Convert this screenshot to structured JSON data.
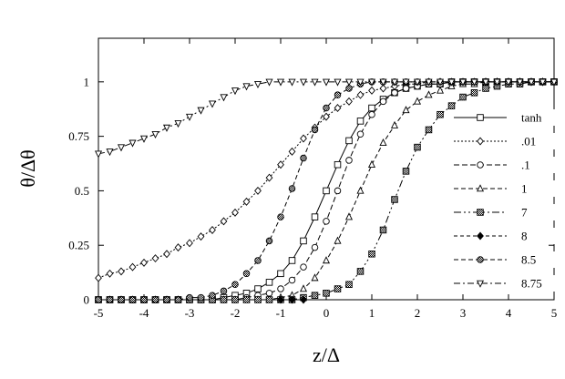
{
  "chart_data": {
    "type": "line",
    "title": "",
    "xlabel": "z/Δ",
    "ylabel": "θ/Δθ",
    "xlim": [
      -5,
      5
    ],
    "ylim": [
      0,
      1.2
    ],
    "xticks": [
      -5,
      -4,
      -3,
      -2,
      -1,
      0,
      1,
      2,
      3,
      4,
      5
    ],
    "xtick_labels": [
      "-5",
      "-4",
      "-3",
      "-2",
      "-1",
      "0",
      "1",
      "2",
      "3",
      "4",
      "5"
    ],
    "yticks": [
      0,
      0.25,
      0.5,
      0.75,
      1
    ],
    "ytick_labels": [
      "0",
      "0.25",
      "0.5",
      "0.75",
      "1"
    ],
    "grid": false,
    "legend_position": "right",
    "series": [
      {
        "name": "tanh",
        "marker": "square-open",
        "dash": "solid",
        "x": [
          -5,
          -4.75,
          -4.5,
          -4.25,
          -4,
          -3.75,
          -3.5,
          -3.25,
          -3,
          -2.75,
          -2.5,
          -2.25,
          -2,
          -1.75,
          -1.5,
          -1.25,
          -1,
          -0.75,
          -0.5,
          -0.25,
          0,
          0.25,
          0.5,
          0.75,
          1,
          1.25,
          1.5,
          1.75,
          2,
          2.25,
          2.5,
          2.75,
          3,
          3.25,
          3.5,
          3.75,
          4,
          4.25,
          4.5,
          4.75,
          5
        ],
        "y": [
          0,
          0,
          0,
          0,
          0,
          0,
          0,
          0,
          0,
          0,
          0,
          0.01,
          0.02,
          0.03,
          0.05,
          0.08,
          0.12,
          0.18,
          0.27,
          0.38,
          0.5,
          0.62,
          0.73,
          0.82,
          0.88,
          0.92,
          0.95,
          0.97,
          0.98,
          0.99,
          0.99,
          1,
          1,
          1,
          1,
          1,
          1,
          1,
          1,
          1,
          1
        ]
      },
      {
        "name": ".01",
        "marker": "diamond-open",
        "dash": "2,2",
        "x": [
          -5,
          -4.75,
          -4.5,
          -4.25,
          -4,
          -3.75,
          -3.5,
          -3.25,
          -3,
          -2.75,
          -2.5,
          -2.25,
          -2,
          -1.75,
          -1.5,
          -1.25,
          -1,
          -0.75,
          -0.5,
          -0.25,
          0,
          0.25,
          0.5,
          0.75,
          1,
          1.25,
          1.5,
          1.75,
          2,
          2.25,
          2.5,
          2.75,
          3,
          3.25,
          3.5,
          3.75,
          4,
          4.25,
          4.5,
          4.75,
          5
        ],
        "y": [
          0.1,
          0.12,
          0.13,
          0.15,
          0.17,
          0.19,
          0.21,
          0.24,
          0.26,
          0.29,
          0.32,
          0.36,
          0.4,
          0.45,
          0.5,
          0.56,
          0.62,
          0.68,
          0.74,
          0.79,
          0.84,
          0.88,
          0.91,
          0.94,
          0.96,
          0.97,
          0.98,
          0.99,
          0.99,
          1,
          1,
          1,
          1,
          1,
          1,
          1,
          1,
          1,
          1,
          1,
          1
        ]
      },
      {
        "name": ".1",
        "marker": "circle-open",
        "dash": "6,3",
        "x": [
          -5,
          -4.75,
          -4.5,
          -4.25,
          -4,
          -3.75,
          -3.5,
          -3.25,
          -3,
          -2.75,
          -2.5,
          -2.25,
          -2,
          -1.75,
          -1.5,
          -1.25,
          -1,
          -0.75,
          -0.5,
          -0.25,
          0,
          0.25,
          0.5,
          0.75,
          1,
          1.25,
          1.5,
          1.75,
          2,
          2.25,
          2.5,
          2.75,
          3,
          3.25,
          3.5,
          3.75,
          4,
          4.25,
          4.5,
          4.75,
          5
        ],
        "y": [
          0,
          0,
          0,
          0,
          0,
          0,
          0,
          0,
          0,
          0,
          0,
          0,
          0,
          0.01,
          0.02,
          0.03,
          0.05,
          0.09,
          0.15,
          0.24,
          0.36,
          0.5,
          0.64,
          0.76,
          0.85,
          0.91,
          0.95,
          0.97,
          0.98,
          0.99,
          0.99,
          1,
          1,
          1,
          1,
          1,
          1,
          1,
          1,
          1,
          1
        ]
      },
      {
        "name": "1",
        "marker": "triangle-open",
        "dash": "5,3",
        "x": [
          -5,
          -4.75,
          -4.5,
          -4.25,
          -4,
          -3.75,
          -3.5,
          -3.25,
          -3,
          -2.75,
          -2.5,
          -2.25,
          -2,
          -1.75,
          -1.5,
          -1.25,
          -1,
          -0.75,
          -0.5,
          -0.25,
          0,
          0.25,
          0.5,
          0.75,
          1,
          1.25,
          1.5,
          1.75,
          2,
          2.25,
          2.5,
          2.75,
          3,
          3.25,
          3.5,
          3.75,
          4,
          4.25,
          4.5,
          4.75,
          5
        ],
        "y": [
          0,
          0,
          0,
          0,
          0,
          0,
          0,
          0,
          0,
          0,
          0,
          0,
          0,
          0,
          0,
          0,
          0.01,
          0.02,
          0.05,
          0.1,
          0.18,
          0.27,
          0.38,
          0.5,
          0.62,
          0.72,
          0.8,
          0.87,
          0.91,
          0.94,
          0.96,
          0.98,
          0.99,
          0.99,
          1,
          1,
          1,
          1,
          1,
          1,
          1
        ]
      },
      {
        "name": "7",
        "marker": "square-hatched",
        "dash": "8,3,2,3,2,3",
        "x": [
          -5,
          -4.75,
          -4.5,
          -4.25,
          -4,
          -3.75,
          -3.5,
          -3.25,
          -3,
          -2.75,
          -2.5,
          -2.25,
          -2,
          -1.75,
          -1.5,
          -1.25,
          -1,
          -0.75,
          -0.5,
          -0.25,
          0,
          0.25,
          0.5,
          0.75,
          1,
          1.25,
          1.5,
          1.75,
          2,
          2.25,
          2.5,
          2.75,
          3,
          3.25,
          3.5,
          3.75,
          4,
          4.25,
          4.5,
          4.75,
          5
        ],
        "y": [
          0,
          0,
          0,
          0,
          0,
          0,
          0,
          0,
          0,
          0,
          0,
          0,
          0,
          0,
          0,
          0,
          0,
          0,
          0.01,
          0.02,
          0.03,
          0.05,
          0.07,
          0.13,
          0.21,
          0.32,
          0.46,
          0.59,
          0.7,
          0.78,
          0.85,
          0.89,
          0.93,
          0.95,
          0.97,
          0.98,
          0.99,
          0.99,
          1,
          1,
          1
        ]
      },
      {
        "name": "8",
        "marker": "diamond-filled",
        "dash": "4,3",
        "x": [
          -1,
          -0.75,
          -0.5
        ],
        "y": [
          0,
          0,
          0
        ]
      },
      {
        "name": "8.5",
        "marker": "circle-hatched",
        "dash": "5,3",
        "x": [
          -5,
          -4.75,
          -4.5,
          -4.25,
          -4,
          -3.75,
          -3.5,
          -3.25,
          -3,
          -2.75,
          -2.5,
          -2.25,
          -2,
          -1.75,
          -1.5,
          -1.25,
          -1,
          -0.75,
          -0.5,
          -0.25,
          0,
          0.25,
          0.5,
          0.75,
          1,
          1.25,
          1.5,
          1.75,
          2,
          2.25,
          2.5,
          2.75,
          3,
          3.25,
          3.5,
          3.75,
          4,
          4.25,
          4.5,
          4.75,
          5
        ],
        "y": [
          0,
          0,
          0,
          0,
          0,
          0,
          0,
          0,
          0.01,
          0.01,
          0.02,
          0.04,
          0.07,
          0.12,
          0.18,
          0.27,
          0.38,
          0.51,
          0.65,
          0.78,
          0.88,
          0.94,
          0.97,
          0.99,
          1,
          1,
          1,
          1,
          1,
          1,
          1,
          1,
          1,
          1,
          1,
          1,
          1,
          1,
          1,
          1,
          1
        ]
      },
      {
        "name": "8.75",
        "marker": "triangle-down-open",
        "dash": "7,3,2,3",
        "x": [
          -5,
          -4.75,
          -4.5,
          -4.25,
          -4,
          -3.75,
          -3.5,
          -3.25,
          -3,
          -2.75,
          -2.5,
          -2.25,
          -2,
          -1.75,
          -1.5,
          -1.25,
          -1,
          -0.75,
          -0.5,
          -0.25,
          0,
          0.25,
          0.5,
          0.75,
          1,
          1.25,
          1.5,
          1.75,
          2,
          2.25,
          2.5,
          2.75,
          3,
          3.25,
          3.5,
          3.75,
          4,
          4.25,
          4.5,
          4.75,
          5
        ],
        "y": [
          0.67,
          0.68,
          0.7,
          0.72,
          0.74,
          0.76,
          0.79,
          0.81,
          0.84,
          0.87,
          0.9,
          0.93,
          0.96,
          0.98,
          0.99,
          1,
          1,
          1,
          1,
          1,
          1,
          1,
          1,
          1,
          1,
          1,
          1,
          1,
          1,
          1,
          1,
          1,
          1,
          1,
          1,
          1,
          1,
          1,
          1,
          1,
          1
        ]
      }
    ]
  }
}
